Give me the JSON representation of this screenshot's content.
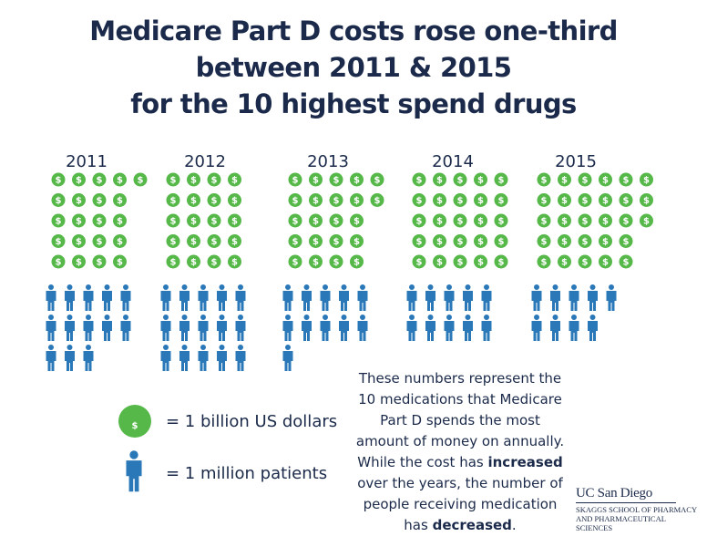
{
  "title_lines": [
    "Medicare Part D costs rose one-third",
    "between 2011 & 2015",
    "for the 10 highest spend drugs"
  ],
  "colors": {
    "coin": "#55b848",
    "person": "#2a78b8",
    "text": "#1b2a4a"
  },
  "chart_data": {
    "type": "pictograph",
    "categories": [
      "2011",
      "2012",
      "2013",
      "2014",
      "2015"
    ],
    "series": [
      {
        "name": "= 1 billion US dollars",
        "icon": "dollar-coin-icon",
        "values": [
          21,
          20,
          22,
          25,
          28
        ]
      },
      {
        "name": "= 1 million patients",
        "icon": "person-icon",
        "values": [
          13,
          15,
          11,
          10,
          9
        ]
      }
    ]
  },
  "legend": {
    "coin_label": "= 1 billion US dollars",
    "person_label": "= 1 million patients"
  },
  "note": {
    "line1": "These numbers represent the",
    "line2": "10 medications that Medicare",
    "line3": "Part D spends the most",
    "line4": "amount of money on annually.",
    "line5_pre": "While the cost has ",
    "line5_bold": "increased",
    "line6": "over the years, the number of",
    "line7": "people receiving medication",
    "line8_pre": "has ",
    "line8_bold": "decreased",
    "line8_post": "."
  },
  "logo": {
    "main": "UC San Diego",
    "sub1": "SKAGGS SCHOOL OF PHARMACY",
    "sub2": "AND PHARMACEUTICAL SCIENCES"
  }
}
